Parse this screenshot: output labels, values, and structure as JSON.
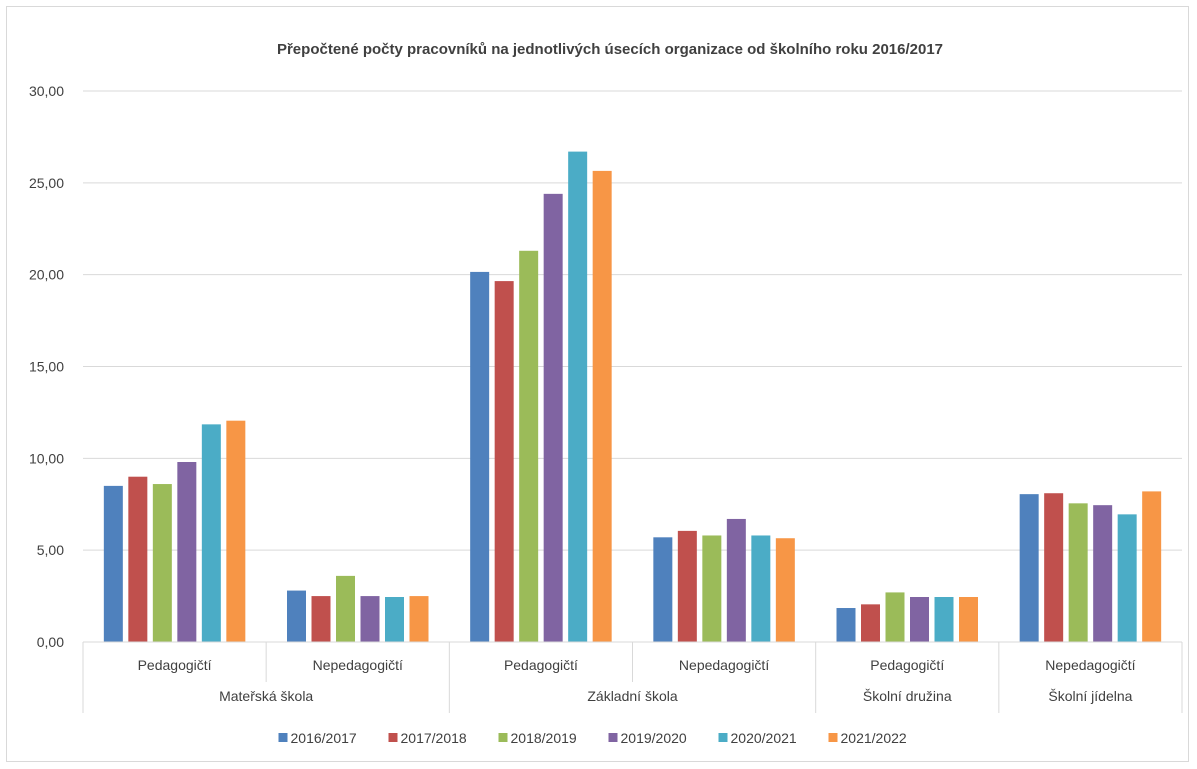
{
  "chart_data": {
    "type": "bar",
    "title": "Přepočtené počty pracovníků na jednotlivých úsecích organizace od školního roku 2016/2017",
    "xlabel": "",
    "ylabel": "",
    "ylim": [
      0,
      30
    ],
    "y_ticks": [
      "0,00",
      "5,00",
      "10,00",
      "15,00",
      "20,00",
      "25,00",
      "30,00"
    ],
    "grid": true,
    "legend_position": "bottom",
    "categories": [
      "Pedagogičtí",
      "Nepedagogičtí",
      "Pedagogičtí",
      "Nepedagogičtí",
      "Pedagogičtí",
      "Nepedagogičtí"
    ],
    "groups": [
      {
        "label": "Mateřská škola",
        "span": 2
      },
      {
        "label": "Základní škola",
        "span": 2
      },
      {
        "label": "Školní družina",
        "span": 1
      },
      {
        "label": "Školní jídelna",
        "span": 1
      }
    ],
    "series": [
      {
        "name": "2016/2017",
        "color": "#4f81bd",
        "values": [
          8.5,
          2.8,
          20.15,
          5.7,
          1.85,
          8.05
        ]
      },
      {
        "name": "2017/2018",
        "color": "#c0504d",
        "values": [
          9.0,
          2.5,
          19.65,
          6.05,
          2.05,
          8.1
        ]
      },
      {
        "name": "2018/2019",
        "color": "#9bbb59",
        "values": [
          8.6,
          3.6,
          21.3,
          5.8,
          2.7,
          7.55
        ]
      },
      {
        "name": "2019/2020",
        "color": "#8064a2",
        "values": [
          9.8,
          2.5,
          24.4,
          6.7,
          2.45,
          7.45
        ]
      },
      {
        "name": "2020/2021",
        "color": "#4bacc6",
        "values": [
          11.85,
          2.45,
          26.7,
          5.8,
          2.45,
          6.95
        ]
      },
      {
        "name": "2021/2022",
        "color": "#f79646",
        "values": [
          12.05,
          2.5,
          25.65,
          5.65,
          2.45,
          8.2
        ]
      }
    ]
  }
}
